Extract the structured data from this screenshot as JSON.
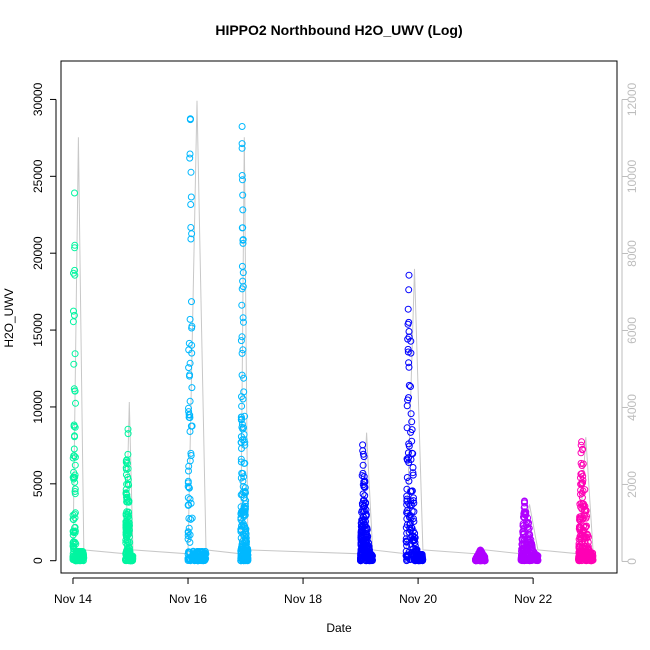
{
  "chart_data": {
    "type": "scatter",
    "title": "HIPPO2 Northbound H2O_UWV (Log)",
    "xlabel": "Date",
    "ylabel": "H2O_UWV",
    "x_ticks": [
      {
        "value": "2009-11-14",
        "label": "Nov 14"
      },
      {
        "value": "2009-11-16",
        "label": "Nov 16"
      },
      {
        "value": "2009-11-18",
        "label": "Nov 18"
      },
      {
        "value": "2009-11-20",
        "label": "Nov 20"
      },
      {
        "value": "2009-11-22",
        "label": "Nov 22"
      }
    ],
    "xlim": [
      "2009-11-13T19:00",
      "2009-11-23T11:00"
    ],
    "ylim": [
      -800,
      32500
    ],
    "y_ticks": [
      0,
      5000,
      10000,
      15000,
      20000,
      25000,
      30000
    ],
    "y2_ticks": [
      0,
      2000,
      4000,
      6000,
      8000,
      10000,
      12000
    ],
    "y2lim": [
      -300,
      13000
    ],
    "grid": false,
    "series": [
      {
        "color": "#00f5a0",
        "start": "2009-11-14T00:00",
        "end": "2009-11-14T04:30",
        "points": [
          [
            0.0,
            300
          ],
          [
            0.05,
            19000
          ],
          [
            0.1,
            9000
          ],
          [
            0.14,
            25000
          ],
          [
            0.18,
            29000
          ],
          [
            0.21,
            4000
          ],
          [
            0.23,
            12000
          ],
          [
            0.26,
            600
          ]
        ]
      },
      {
        "color": "#00f5a0",
        "start": "2009-11-14T22:00",
        "end": "2009-11-15T01:00",
        "points": [
          [
            0.0,
            200
          ],
          [
            0.1,
            9800
          ],
          [
            0.2,
            4000
          ],
          [
            0.3,
            10900
          ],
          [
            0.4,
            5000
          ],
          [
            0.6,
            300
          ]
        ]
      },
      {
        "color": "#00b8ff",
        "start": "2009-11-16T00:00",
        "end": "2009-11-16T07:30",
        "points": [
          [
            0.0,
            200
          ],
          [
            0.05,
            20000
          ],
          [
            0.1,
            31500
          ],
          [
            0.15,
            27000
          ],
          [
            0.2,
            22000
          ],
          [
            0.25,
            1000
          ],
          [
            0.3,
            600
          ]
        ]
      },
      {
        "color": "#00b8ff",
        "start": "2009-11-16T22:00",
        "end": "2009-11-17T01:00",
        "points": [
          [
            0.0,
            200
          ],
          [
            0.2,
            29000
          ],
          [
            0.4,
            18000
          ],
          [
            0.6,
            6000
          ],
          [
            0.8,
            800
          ]
        ]
      },
      {
        "color": "#0000ff",
        "start": "2009-11-19T00:00",
        "end": "2009-11-19T05:00",
        "points": [
          [
            0.0,
            200
          ],
          [
            0.2,
            8800
          ],
          [
            0.4,
            4000
          ],
          [
            0.6,
            1500
          ],
          [
            0.8,
            400
          ]
        ]
      },
      {
        "color": "#0000ff",
        "start": "2009-11-19T19:00",
        "end": "2009-11-20T02:00",
        "points": [
          [
            0.0,
            200
          ],
          [
            0.1,
            15000
          ],
          [
            0.2,
            20000
          ],
          [
            0.35,
            9000
          ],
          [
            0.5,
            2000
          ],
          [
            0.7,
            400
          ]
        ]
      },
      {
        "color": "#b000ff",
        "start": "2009-11-21T00:00",
        "end": "2009-11-21T04:00",
        "points": [
          [
            0.0,
            100
          ],
          [
            0.5,
            700
          ],
          [
            1.0,
            200
          ]
        ]
      },
      {
        "color": "#b000ff",
        "start": "2009-11-21T19:00",
        "end": "2009-11-22T02:00",
        "points": [
          [
            0.0,
            200
          ],
          [
            0.2,
            3900
          ],
          [
            0.4,
            2700
          ],
          [
            0.6,
            1200
          ],
          [
            0.8,
            400
          ]
        ]
      },
      {
        "color": "#ff00b4",
        "start": "2009-11-22T19:00",
        "end": "2009-11-23T01:00",
        "points": [
          [
            0.0,
            200
          ],
          [
            0.2,
            8500
          ],
          [
            0.4,
            5000
          ],
          [
            0.6,
            2200
          ],
          [
            0.8,
            500
          ]
        ]
      }
    ],
    "line_color": "#c8c8c8"
  }
}
